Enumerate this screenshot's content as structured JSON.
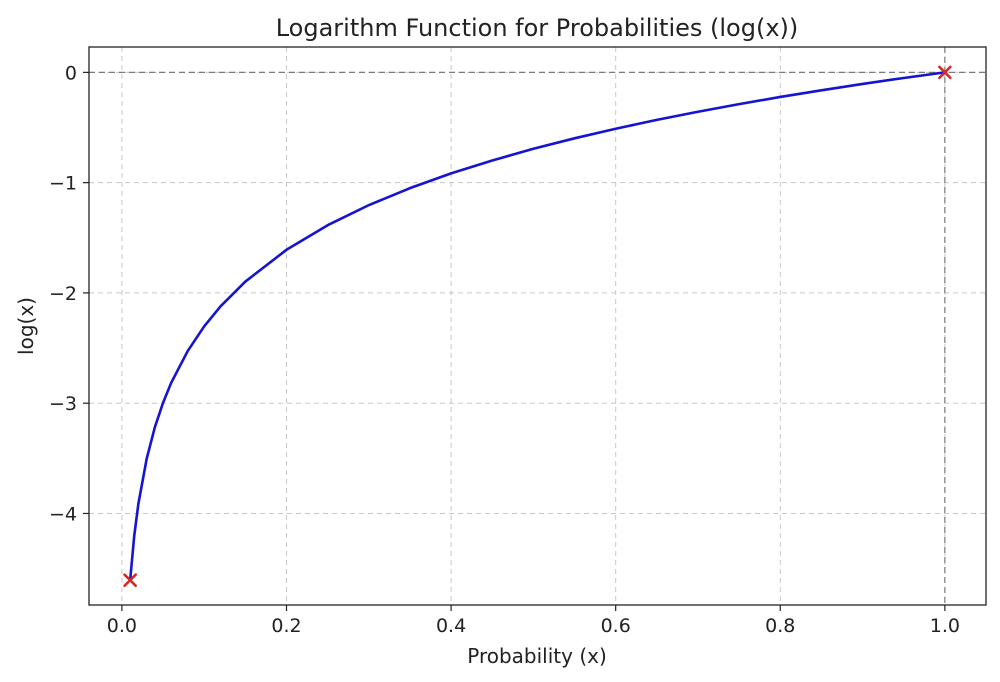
{
  "chart_data": {
    "type": "line",
    "title": "Logarithm Function for Probabilities (log(x))",
    "xlabel": "Probability (x)",
    "ylabel": "log(x)",
    "xlim": [
      -0.04,
      1.05
    ],
    "ylim": [
      -4.83,
      0.23
    ],
    "x_ticks": [
      0.0,
      0.2,
      0.4,
      0.6,
      0.8,
      1.0
    ],
    "x_tick_labels": [
      "0.0",
      "0.2",
      "0.4",
      "0.6",
      "0.8",
      "1.0"
    ],
    "y_ticks": [
      0,
      -1,
      -2,
      -3,
      -4
    ],
    "y_tick_labels": [
      "0",
      "−1",
      "−2",
      "−3",
      "−4"
    ],
    "grid": true,
    "reference_lines": {
      "horizontal_y": 0,
      "vertical_x": 1.0
    },
    "series": [
      {
        "function": "natural log",
        "x": [
          0.01,
          0.015,
          0.02,
          0.03,
          0.04,
          0.05,
          0.06,
          0.08,
          0.1,
          0.12,
          0.15,
          0.2,
          0.25,
          0.3,
          0.35,
          0.4,
          0.45,
          0.5,
          0.55,
          0.6,
          0.65,
          0.7,
          0.75,
          0.8,
          0.85,
          0.9,
          0.95,
          1.0
        ],
        "y": [
          -4.605,
          -4.2,
          -3.912,
          -3.507,
          -3.219,
          -2.996,
          -2.813,
          -2.526,
          -2.303,
          -2.12,
          -1.897,
          -1.609,
          -1.386,
          -1.204,
          -1.05,
          -0.916,
          -0.799,
          -0.693,
          -0.598,
          -0.511,
          -0.431,
          -0.357,
          -0.288,
          -0.223,
          -0.163,
          -0.105,
          -0.051,
          0.0
        ],
        "color": "#1414d2"
      }
    ],
    "markers": [
      {
        "x": 0.01,
        "y": -4.605,
        "symbol": "x",
        "color": "#d62728"
      },
      {
        "x": 1.0,
        "y": 0.0,
        "symbol": "x",
        "color": "#d62728"
      }
    ]
  }
}
